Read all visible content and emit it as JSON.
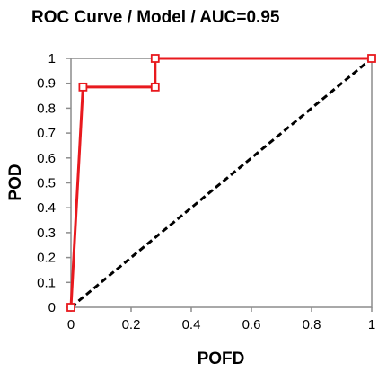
{
  "chart_data": {
    "type": "line",
    "title": "ROC Curve / Model / AUC=0.95",
    "xlabel": "POFD",
    "ylabel": "POD",
    "xlim": [
      0,
      1
    ],
    "ylim": [
      0,
      1
    ],
    "x_ticks": [
      "0",
      "0.2",
      "0.4",
      "0.6",
      "0.8",
      "1"
    ],
    "y_ticks": [
      "0",
      "0.1",
      "0.2",
      "0.3",
      "0.4",
      "0.5",
      "0.6",
      "0.7",
      "0.8",
      "0.9",
      "1"
    ],
    "grid": false,
    "series": [
      {
        "color": "#e8191e",
        "marker": "square",
        "points": [
          {
            "x": 0.0,
            "y": 0.0
          },
          {
            "x": 0.04,
            "y": 0.885
          },
          {
            "x": 0.28,
            "y": 0.885
          },
          {
            "x": 0.28,
            "y": 1.0
          },
          {
            "x": 1.0,
            "y": 1.0
          }
        ]
      },
      {
        "color": "#000000",
        "dash": "dashed",
        "points": [
          {
            "x": 0.0,
            "y": 0.0
          },
          {
            "x": 1.0,
            "y": 1.0
          }
        ]
      }
    ]
  }
}
